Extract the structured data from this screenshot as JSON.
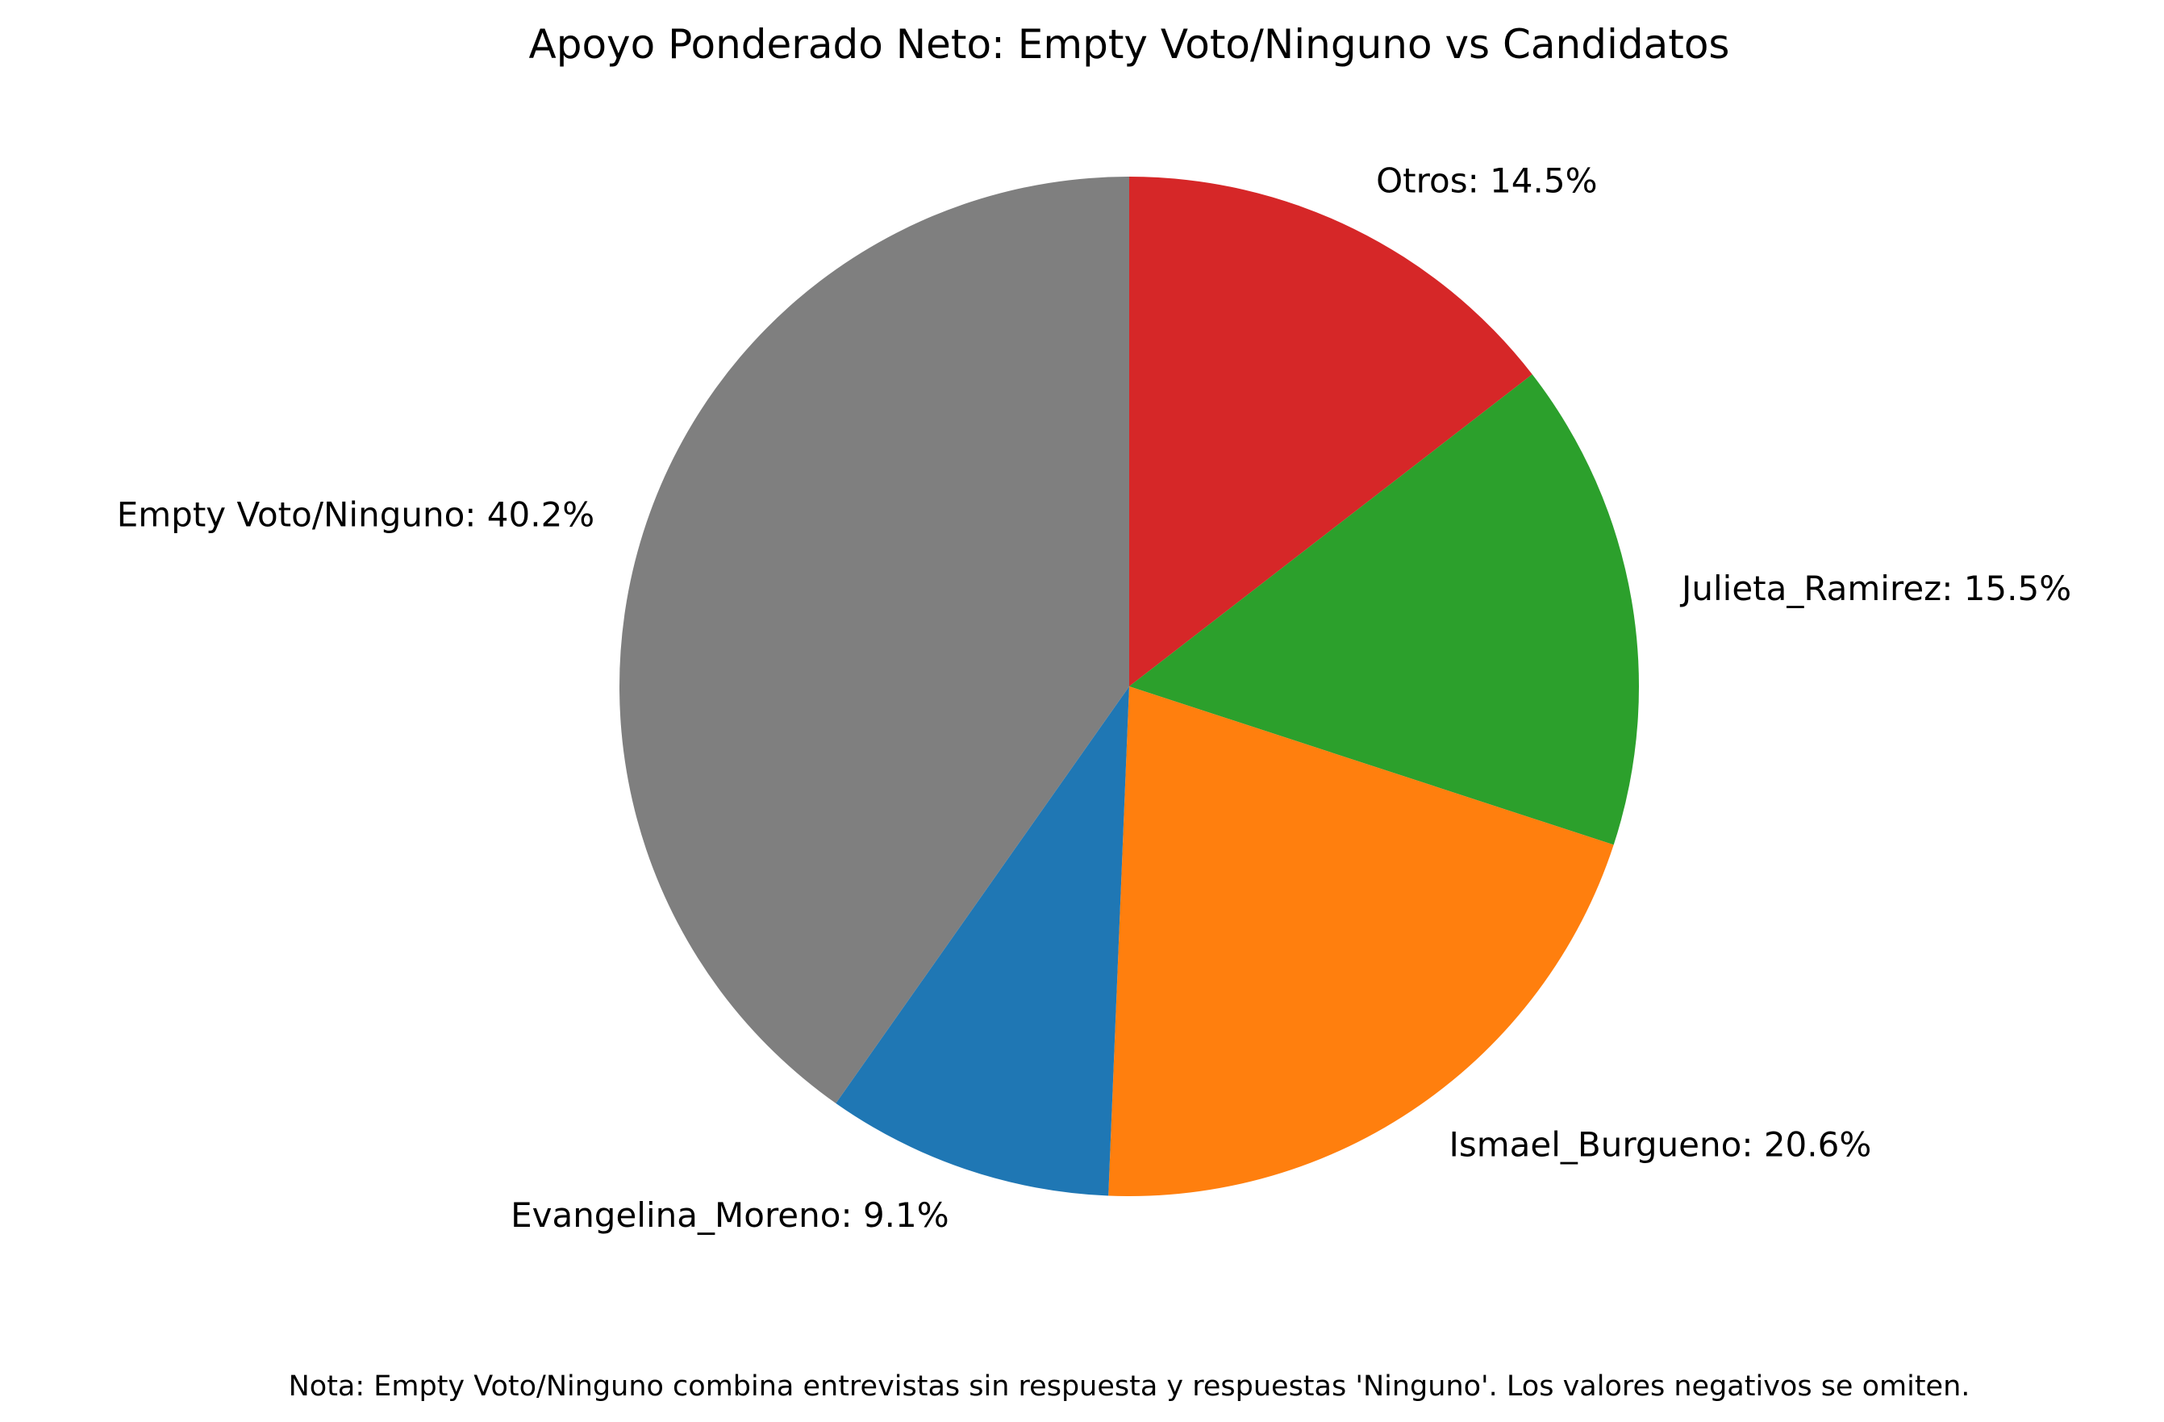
{
  "chart_data": {
    "type": "pie",
    "title": "Apoyo Ponderado Neto: Empty Voto/Ninguno vs Candidatos",
    "start_angle_deg": 90,
    "direction": "clockwise",
    "slices": [
      {
        "label": "Otros",
        "value": 14.5,
        "display": "Otros: 14.5%",
        "color": "#d62728"
      },
      {
        "label": "Julieta_Ramirez",
        "value": 15.5,
        "display": "Julieta_Ramirez: 15.5%",
        "color": "#2ca02c"
      },
      {
        "label": "Ismael_Burgueno",
        "value": 20.6,
        "display": "Ismael_Burgueno: 20.6%",
        "color": "#ff7f0e"
      },
      {
        "label": "Evangelina_Moreno",
        "value": 9.1,
        "display": "Evangelina_Moreno: 9.1%",
        "color": "#1f77b4"
      },
      {
        "label": "Empty Voto/Ninguno",
        "value": 40.2,
        "display": "Empty Voto/Ninguno: 40.2%",
        "color": "#7f7f7f"
      }
    ],
    "note": "Nota: Empty Voto/Ninguno combina entrevistas sin respuesta y respuestas 'Ninguno'. Los valores negativos se omiten."
  }
}
